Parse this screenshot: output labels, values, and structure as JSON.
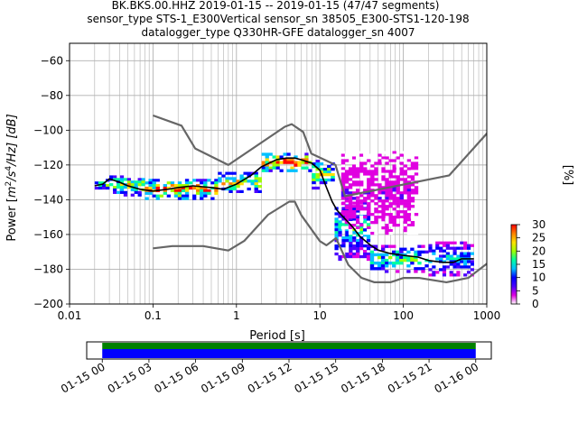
{
  "figure": {
    "title_lines": [
      "BK.BKS.00.HHZ   2019-01-15 -- 2019-01-15  (47/47 segments)",
      "sensor_type STS-1_E300Vertical sensor_sn 38505_E300-STS1-120-198",
      "datalogger_type Q330HR-GFE datalogger_sn 4007"
    ]
  },
  "colorbar": {
    "label": "[%]",
    "ticks": [
      "0",
      "5",
      "10",
      "15",
      "20",
      "25",
      "30"
    ],
    "tick_values": [
      0,
      5,
      10,
      15,
      20,
      25,
      30
    ],
    "colormap": [
      "#ffffff",
      "#e000e0",
      "#4b00ff",
      "#0000ff",
      "#00c0ff",
      "#00ffa0",
      "#a0ff00",
      "#ffe000",
      "#ff8000",
      "#ff0000"
    ]
  },
  "chart_data": [
    {
      "type": "heatmap",
      "name": "ppsd",
      "xlabel": "Period [s]",
      "ylabel": "Power [m²/s⁴/Hz] [dB]",
      "ylabel_parts": {
        "pre": "Power [",
        "m": "m",
        "exp1": "2",
        "mid": "/s",
        "exp2": "4",
        "post": "/Hz] [dB]"
      },
      "xscale": "log",
      "xlim": [
        0.01,
        1000
      ],
      "ylim": [
        -200,
        -50
      ],
      "x_ticks": [
        0.01,
        0.1,
        1,
        10,
        100,
        1000
      ],
      "x_tick_labels": [
        "0.01",
        "0.1",
        "1",
        "10",
        "100",
        "1000"
      ],
      "y_ticks": [
        -200,
        -180,
        -160,
        -140,
        -120,
        -100,
        -80,
        -60
      ],
      "y_tick_labels": [
        "−200",
        "−180",
        "−160",
        "−140",
        "−120",
        "−100",
        "−80",
        "−60"
      ],
      "grid": true,
      "nhnm": {
        "period": [
          0.1,
          0.22,
          0.32,
          0.8,
          3.8,
          4.6,
          6.3,
          7.9,
          15.4,
          20,
          354.8,
          10000
        ],
        "power": [
          -91.5,
          -97.4,
          -110.5,
          -120,
          -98,
          -96.5,
          -101,
          -113.5,
          -120,
          -138,
          -126,
          -48.5
        ]
      },
      "nlnm": {
        "period": [
          0.1,
          0.17,
          0.4,
          0.8,
          1.24,
          2.4,
          4.3,
          5,
          6,
          10,
          12,
          15.6,
          21.9,
          31.6,
          45,
          70,
          101,
          154,
          328,
          600,
          10000
        ],
        "power": [
          -168,
          -166.7,
          -166.7,
          -169.2,
          -163.7,
          -148.6,
          -141.1,
          -141.1,
          -149,
          -163.8,
          -166.2,
          -162.1,
          -177.5,
          -185,
          -187.5,
          -187.5,
          -185,
          -185,
          -187.5,
          -185,
          -140
        ]
      },
      "mean_curve": {
        "period": [
          0.02,
          0.025,
          0.03,
          0.04,
          0.05,
          0.07,
          0.1,
          0.15,
          0.2,
          0.3,
          0.5,
          0.7,
          1,
          1.5,
          2,
          3,
          4,
          5,
          6,
          8,
          10,
          12,
          14,
          16,
          20,
          25,
          30,
          40,
          50,
          70,
          100,
          150,
          200,
          300,
          400,
          500,
          700
        ],
        "power": [
          -132,
          -131,
          -128,
          -130,
          -132,
          -134,
          -135,
          -134,
          -133,
          -132,
          -133,
          -134,
          -131,
          -126,
          -121,
          -117,
          -116,
          -116,
          -117,
          -119,
          -123,
          -133,
          -141,
          -146,
          -151,
          -156,
          -161,
          -166,
          -169,
          -171,
          -172,
          -173,
          -175,
          -176,
          -176,
          -174,
          -174
        ]
      },
      "density_bands": [
        {
          "period_range": [
            0.02,
            0.03
          ],
          "power_range": [
            -134,
            -128
          ],
          "percent": 12
        },
        {
          "period_range": [
            0.03,
            0.08
          ],
          "power_range": [
            -138,
            -126
          ],
          "percent": 15
        },
        {
          "period_range": [
            0.08,
            0.6
          ],
          "power_range": [
            -140,
            -128
          ],
          "percent": 18
        },
        {
          "period_range": [
            0.6,
            2
          ],
          "power_range": [
            -136,
            -124
          ],
          "percent": 16
        },
        {
          "period_range": [
            2,
            8
          ],
          "power_range": [
            -124,
            -113
          ],
          "percent": 20
        },
        {
          "period_range": [
            8,
            15
          ],
          "power_range": [
            -134,
            -117
          ],
          "percent": 14
        },
        {
          "period_range": [
            15,
            40
          ],
          "power_range": [
            -175,
            -138
          ],
          "percent": 10
        },
        {
          "period_range": [
            40,
            200
          ],
          "power_range": [
            -182,
            -166
          ],
          "percent": 12
        },
        {
          "period_range": [
            200,
            700
          ],
          "power_range": [
            -184,
            -164
          ],
          "percent": 9
        },
        {
          "period_range": [
            18,
            150
          ],
          "power_range": [
            -160,
            -112
          ],
          "percent": 3
        }
      ]
    },
    {
      "type": "bar",
      "name": "data-coverage",
      "x_tick_labels": [
        "01-15 00",
        "01-15 03",
        "01-15 06",
        "01-15 09",
        "01-15 12",
        "01-15 15",
        "01-15 18",
        "01-15 21",
        "01-16 00"
      ],
      "xlim_hours": [
        -1,
        25
      ],
      "coverage_hours": [
        0,
        24
      ],
      "segment_count": 47,
      "bands": [
        {
          "name": "data",
          "color": "#008000"
        },
        {
          "name": "used",
          "color": "#0000ff"
        }
      ]
    }
  ]
}
